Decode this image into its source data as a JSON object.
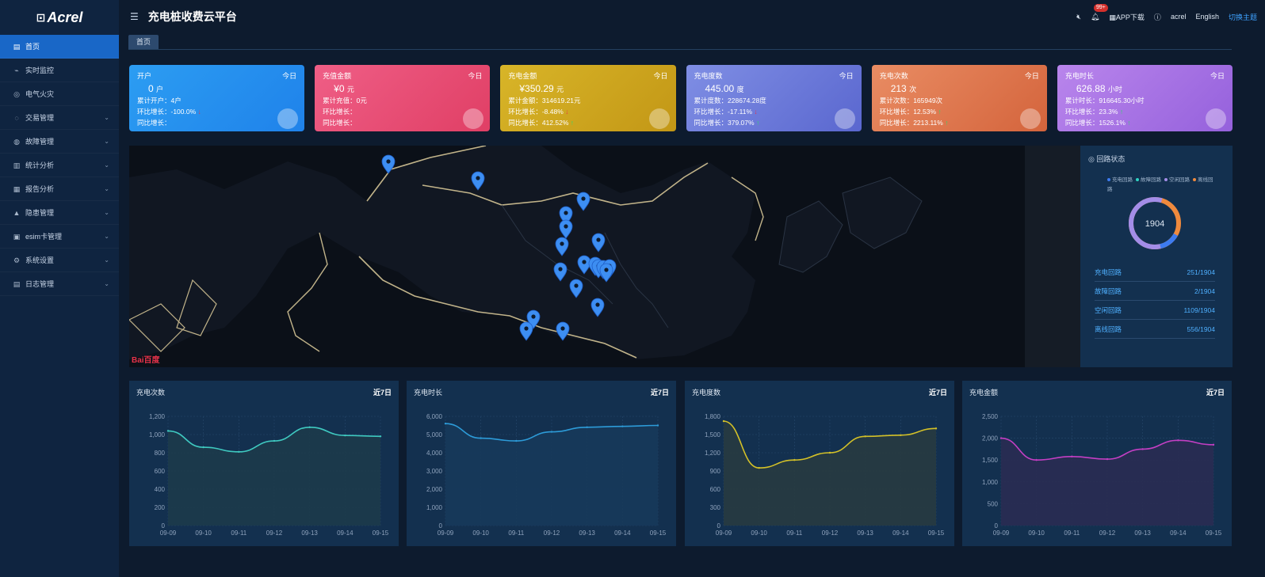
{
  "brand": {
    "logo_mark": "⊡",
    "logo_text": "Acrel"
  },
  "app_title": "充电桩收费云平台",
  "topbar": {
    "badge": "99+",
    "app_download": "APP下载",
    "user": "acrel",
    "language": "English",
    "theme": "切换主题"
  },
  "sidebar": {
    "items": [
      {
        "label": "首页",
        "icon": "home-icon",
        "active": true,
        "expandable": false
      },
      {
        "label": "实时监控",
        "icon": "monitor-icon",
        "active": false,
        "expandable": false
      },
      {
        "label": "电气火灾",
        "icon": "fire-icon",
        "active": false,
        "expandable": false
      },
      {
        "label": "交易管理",
        "icon": "trade-icon",
        "active": false,
        "expandable": true
      },
      {
        "label": "故障管理",
        "icon": "fault-icon",
        "active": false,
        "expandable": true
      },
      {
        "label": "统计分析",
        "icon": "chart-icon",
        "active": false,
        "expandable": true
      },
      {
        "label": "报告分析",
        "icon": "report-icon",
        "active": false,
        "expandable": true
      },
      {
        "label": "隐患管理",
        "icon": "warning-icon",
        "active": false,
        "expandable": true
      },
      {
        "label": "esim卡管理",
        "icon": "sim-icon",
        "active": false,
        "expandable": true
      },
      {
        "label": "系统设置",
        "icon": "settings-icon",
        "active": false,
        "expandable": true
      },
      {
        "label": "日志管理",
        "icon": "log-icon",
        "active": false,
        "expandable": true
      }
    ]
  },
  "tabs": [
    {
      "label": "首页"
    }
  ],
  "cards": [
    {
      "title": "开户",
      "today": "今日",
      "value": "0",
      "unit": "户",
      "line1": "累计开户：4户",
      "line2": "环比增长：-100.0%",
      "line3": "同比增长：",
      "arrow2": "↓",
      "arrow3": "",
      "colors": [
        "#2c9df2",
        "#1f82ea"
      ],
      "icon": "user-icon"
    },
    {
      "title": "充值金额",
      "today": "今日",
      "value": "¥0",
      "unit": "元",
      "line1": "累计充值：0元",
      "line2": "环比增长：",
      "line3": "同比增长：",
      "arrow2": "",
      "arrow3": "",
      "colors": [
        "#ef5e86",
        "#e03f65"
      ],
      "icon": "money-bag-icon"
    },
    {
      "title": "充电金额",
      "today": "今日",
      "value": "¥350.29",
      "unit": "元",
      "line1": "累计金额：314619.21元",
      "line2": "环比增长：-8.48%",
      "line3": "同比增长：412.52%",
      "arrow2": "↓",
      "arrow3": "↑",
      "colors": [
        "#d8b528",
        "#c39716"
      ],
      "icon": "coin-icon"
    },
    {
      "title": "充电度数",
      "today": "今日",
      "value": "445.00",
      "unit": "度",
      "line1": "累计度数：228674.28度",
      "line2": "环比增长：-17.11%",
      "line3": "同比增长：379.07%",
      "arrow2": "↓",
      "arrow3": "↑",
      "colors": [
        "#7f8ee4",
        "#5a67cf"
      ],
      "icon": "charger-icon"
    },
    {
      "title": "充电次数",
      "today": "今日",
      "value": "213",
      "unit": "次",
      "line1": "累计次数：165949次",
      "line2": "环比增长：12.53%",
      "line3": "同比增长：2213.11%",
      "arrow2": "↑",
      "arrow3": "↑",
      "colors": [
        "#e98c63",
        "#d4643c"
      ],
      "icon": "database-icon"
    },
    {
      "title": "充电时长",
      "today": "今日",
      "value": "626.88",
      "unit": "小时",
      "line1": "累计时长：916645.30小时",
      "line2": "环比增长：23.3%",
      "line3": "同比增长：1526.1%",
      "arrow2": "↑",
      "arrow3": "↑",
      "colors": [
        "#b985ec",
        "#9561dc"
      ],
      "icon": "hourglass-icon"
    }
  ],
  "map": {
    "attribution": "Bai百度"
  },
  "circuit": {
    "title": "回路状态",
    "legend": [
      {
        "label": "充电回路",
        "color": "#3d7bf0"
      },
      {
        "label": "故障回路",
        "color": "#2fd3c3"
      },
      {
        "label": "空闲回路",
        "color": "#a38de8"
      },
      {
        "label": "离线回路",
        "color": "#f08a3d"
      }
    ],
    "total": "1904",
    "rows": [
      {
        "label": "充电回路",
        "value": "251/1904"
      },
      {
        "label": "故障回路",
        "value": "2/1904"
      },
      {
        "label": "空闲回路",
        "value": "1109/1904"
      },
      {
        "label": "离线回路",
        "value": "556/1904"
      }
    ]
  },
  "chart_data": [
    {
      "type": "area",
      "title": "充电次数",
      "range": "近7日",
      "x": [
        "09-09",
        "09-10",
        "09-11",
        "09-12",
        "09-13",
        "09-14",
        "09-15"
      ],
      "yticks": [
        "0",
        "200",
        "400",
        "600",
        "800",
        "1,000",
        "1,200"
      ],
      "ylim": [
        0,
        1200
      ],
      "series": [
        {
          "values": [
            1040,
            860,
            810,
            930,
            1080,
            990,
            980
          ]
        }
      ],
      "color": "#3fc9c0",
      "fill": "#1d3b4a"
    },
    {
      "type": "area",
      "title": "充电时长",
      "range": "近7日",
      "x": [
        "09-09",
        "09-10",
        "09-11",
        "09-12",
        "09-13",
        "09-14",
        "09-15"
      ],
      "yticks": [
        "0",
        "1,000",
        "2,000",
        "3,000",
        "4,000",
        "5,000",
        "6,000"
      ],
      "ylim": [
        0,
        6000
      ],
      "series": [
        {
          "values": [
            5600,
            4800,
            4650,
            5150,
            5400,
            5450,
            5500
          ]
        }
      ],
      "color": "#2d9bd8",
      "fill": "#173a5a"
    },
    {
      "type": "area",
      "title": "充电度数",
      "range": "近7日",
      "x": [
        "09-09",
        "09-10",
        "09-11",
        "09-12",
        "09-13",
        "09-14",
        "09-15"
      ],
      "yticks": [
        "0",
        "300",
        "600",
        "900",
        "1,200",
        "1,500",
        "1,800"
      ],
      "ylim": [
        0,
        1800
      ],
      "series": [
        {
          "values": [
            1720,
            950,
            1080,
            1200,
            1470,
            1490,
            1600
          ]
        }
      ],
      "color": "#d4c128",
      "fill": "#283b40"
    },
    {
      "type": "area",
      "title": "充电金额",
      "range": "近7日",
      "x": [
        "09-09",
        "09-10",
        "09-11",
        "09-12",
        "09-13",
        "09-14",
        "09-15"
      ],
      "yticks": [
        "0",
        "500",
        "1,000",
        "1,500",
        "2,000",
        "2,500"
      ],
      "ylim": [
        0,
        2500
      ],
      "series": [
        {
          "values": [
            2000,
            1500,
            1580,
            1520,
            1750,
            1950,
            1850
          ]
        }
      ],
      "color": "#c43fc4",
      "fill": "#2a2c52"
    }
  ]
}
